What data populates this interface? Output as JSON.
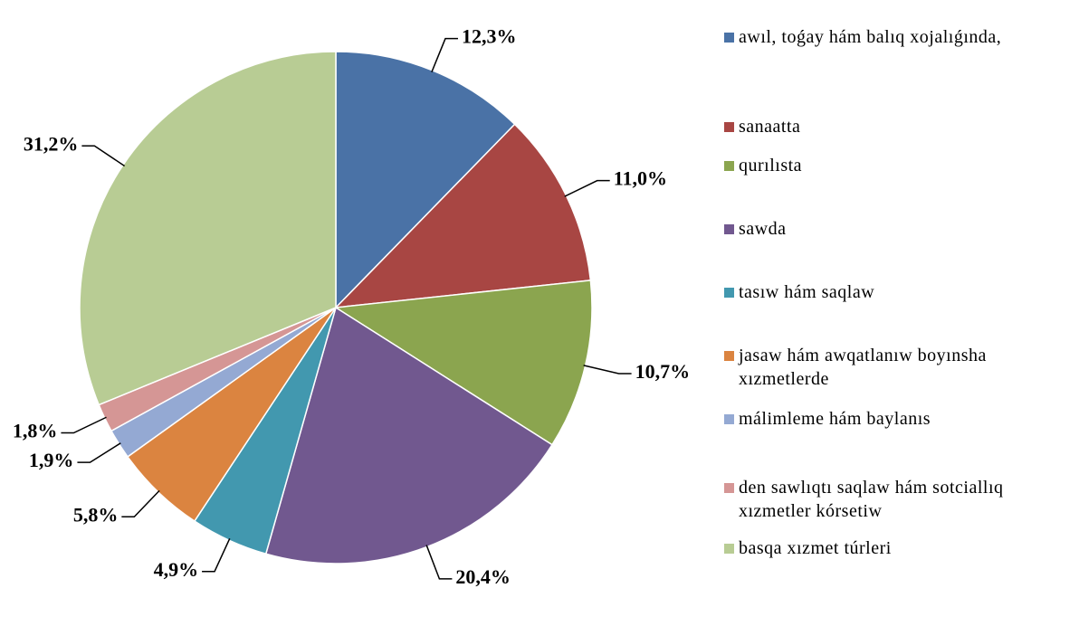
{
  "chart_data": {
    "type": "pie",
    "categories": [
      "awıl, toǵay hám balıq xojalıǵında,",
      "sanaatta",
      "qurılısta",
      "sawda",
      "tasıw hám saqlaw",
      "jasaw hám awqatlanıw boyınsha xızmetlerde",
      "málimleme hám baylanıs",
      "den sawlıqtı saqlaw hám sotciallıq xızmetler kórsetiw",
      "basqa xızmet túrleri"
    ],
    "values": [
      12.3,
      11.0,
      10.7,
      20.4,
      4.9,
      5.8,
      1.9,
      1.8,
      31.2
    ],
    "value_labels": [
      "12,3%",
      "11,0%",
      "10,7%",
      "20,4%",
      "4,9%",
      "5,8%",
      "1,9%",
      "1,8%",
      "31,2%"
    ],
    "colors": [
      "#4a72a6",
      "#a84643",
      "#8ba54f",
      "#71588f",
      "#4298af",
      "#db8440",
      "#94a9d3",
      "#d59695",
      "#b8cc94"
    ],
    "legend": "right"
  }
}
